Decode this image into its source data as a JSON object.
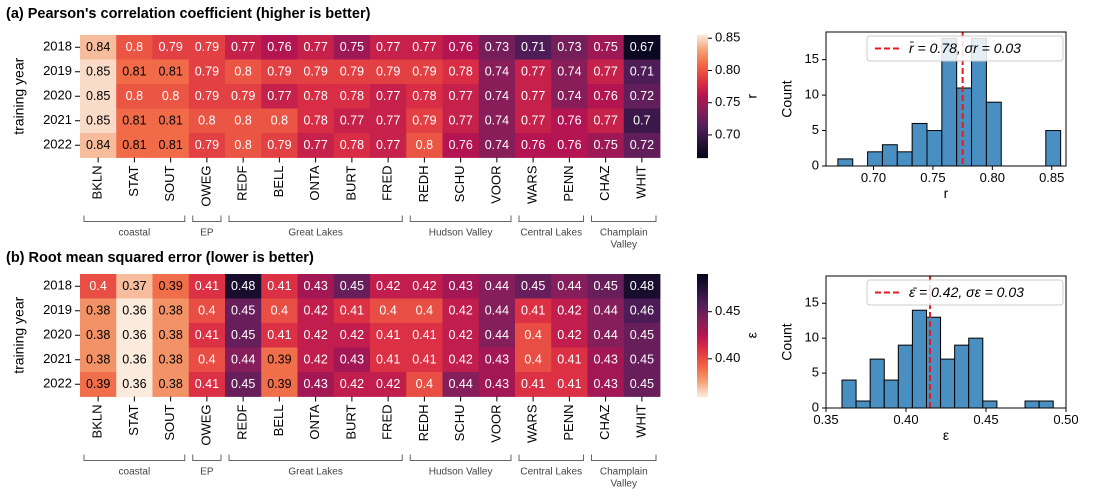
{
  "chart_data": [
    {
      "type": "heatmap",
      "title": "(a) Pearson's correlation coefficient (higher is better)",
      "ylabel": "training year",
      "colorbar_label": "r",
      "colorbar_ticks": [
        "0.70",
        "0.75",
        "0.80",
        "0.85"
      ],
      "colorbar_range": [
        0.665,
        0.855
      ],
      "colormap": "rocket",
      "rows": [
        "2018",
        "2019",
        "2020",
        "2021",
        "2022"
      ],
      "columns": [
        "BKLN",
        "STAT",
        "SOUT",
        "OWEG",
        "REDF",
        "BELL",
        "ONTA",
        "BURT",
        "FRED",
        "REDH",
        "SCHU",
        "VOOR",
        "WARS",
        "PENN",
        "CHAZ",
        "WHIT"
      ],
      "groups": [
        {
          "label": "coastal",
          "columns": 3
        },
        {
          "label": "EP",
          "columns": 1
        },
        {
          "label": "Great Lakes",
          "columns": 5
        },
        {
          "label": "Hudson Valley",
          "columns": 3
        },
        {
          "label": "Central Lakes",
          "columns": 2
        },
        {
          "label": "Champlain\nValley",
          "columns": 2
        }
      ],
      "values": [
        [
          "0.84",
          "0.8",
          "0.79",
          "0.79",
          "0.77",
          "0.76",
          "0.77",
          "0.75",
          "0.77",
          "0.77",
          "0.76",
          "0.73",
          "0.71",
          "0.73",
          "0.75",
          "0.67"
        ],
        [
          "0.85",
          "0.81",
          "0.81",
          "0.79",
          "0.8",
          "0.79",
          "0.79",
          "0.79",
          "0.79",
          "0.79",
          "0.78",
          "0.74",
          "0.77",
          "0.74",
          "0.77",
          "0.71"
        ],
        [
          "0.85",
          "0.8",
          "0.8",
          "0.79",
          "0.79",
          "0.77",
          "0.78",
          "0.78",
          "0.77",
          "0.78",
          "0.77",
          "0.74",
          "0.77",
          "0.74",
          "0.76",
          "0.72"
        ],
        [
          "0.85",
          "0.81",
          "0.81",
          "0.8",
          "0.8",
          "0.8",
          "0.78",
          "0.77",
          "0.77",
          "0.79",
          "0.77",
          "0.74",
          "0.77",
          "0.76",
          "0.77",
          "0.7"
        ],
        [
          "0.84",
          "0.81",
          "0.81",
          "0.79",
          "0.8",
          "0.79",
          "0.77",
          "0.78",
          "0.77",
          "0.8",
          "0.76",
          "0.74",
          "0.76",
          "0.76",
          "0.75",
          "0.72"
        ]
      ]
    },
    {
      "type": "histogram",
      "xlabel": "r",
      "ylabel": "Count",
      "xlim": [
        0.66,
        0.862
      ],
      "ylim": [
        0,
        18.9
      ],
      "xticks": [
        "0.70",
        "0.75",
        "0.80",
        "0.85"
      ],
      "yticks": [
        "0",
        "5",
        "10",
        "15"
      ],
      "bin_edges": [
        0.67,
        0.6825,
        0.695,
        0.7075,
        0.72,
        0.7325,
        0.745,
        0.7575,
        0.77,
        0.7825,
        0.795,
        0.8075,
        0.82,
        0.8325,
        0.845,
        0.8575
      ],
      "counts": [
        1,
        0,
        2,
        3,
        2,
        6,
        5,
        18,
        11,
        18,
        9,
        0,
        0,
        0,
        5
      ],
      "mean_line": 0.775,
      "legend": "r̄ = 0.78, σr = 0.03",
      "bar_color": "#4a8fc2"
    },
    {
      "type": "heatmap",
      "title": "(b) Root mean squared error (lower is better)",
      "ylabel": "training year",
      "colorbar_label": "ε",
      "colorbar_ticks": [
        "0.40",
        "0.45"
      ],
      "colorbar_range": [
        0.36,
        0.49
      ],
      "colormap": "rocket_r",
      "rows": [
        "2018",
        "2019",
        "2020",
        "2021",
        "2022"
      ],
      "columns": [
        "BKLN",
        "STAT",
        "SOUT",
        "OWEG",
        "REDF",
        "BELL",
        "ONTA",
        "BURT",
        "FRED",
        "REDH",
        "SCHU",
        "VOOR",
        "WARS",
        "PENN",
        "CHAZ",
        "WHIT"
      ],
      "groups": [
        {
          "label": "coastal",
          "columns": 3
        },
        {
          "label": "EP",
          "columns": 1
        },
        {
          "label": "Great Lakes",
          "columns": 5
        },
        {
          "label": "Hudson Valley",
          "columns": 3
        },
        {
          "label": "Central Lakes",
          "columns": 2
        },
        {
          "label": "Champlain\nValley",
          "columns": 2
        }
      ],
      "values": [
        [
          "0.4",
          "0.37",
          "0.39",
          "0.41",
          "0.48",
          "0.41",
          "0.43",
          "0.45",
          "0.42",
          "0.42",
          "0.43",
          "0.44",
          "0.45",
          "0.44",
          "0.45",
          "0.48"
        ],
        [
          "0.38",
          "0.36",
          "0.38",
          "0.4",
          "0.45",
          "0.4",
          "0.42",
          "0.41",
          "0.4",
          "0.4",
          "0.42",
          "0.44",
          "0.41",
          "0.42",
          "0.44",
          "0.46"
        ],
        [
          "0.38",
          "0.36",
          "0.38",
          "0.41",
          "0.45",
          "0.41",
          "0.42",
          "0.42",
          "0.41",
          "0.41",
          "0.42",
          "0.44",
          "0.4",
          "0.42",
          "0.44",
          "0.45"
        ],
        [
          "0.38",
          "0.36",
          "0.38",
          "0.4",
          "0.44",
          "0.39",
          "0.42",
          "0.43",
          "0.41",
          "0.41",
          "0.42",
          "0.43",
          "0.4",
          "0.41",
          "0.43",
          "0.45"
        ],
        [
          "0.39",
          "0.36",
          "0.38",
          "0.41",
          "0.45",
          "0.39",
          "0.43",
          "0.42",
          "0.42",
          "0.4",
          "0.44",
          "0.43",
          "0.41",
          "0.41",
          "0.43",
          "0.45"
        ]
      ]
    },
    {
      "type": "histogram",
      "xlabel": "ε",
      "ylabel": "Count",
      "xlim": [
        0.35,
        0.5
      ],
      "ylim": [
        0,
        18.9
      ],
      "xticks": [
        "0.35",
        "0.40",
        "0.45",
        "0.50"
      ],
      "yticks": [
        "0",
        "5",
        "10",
        "15"
      ],
      "bin_edges": [
        0.36,
        0.3688,
        0.3776,
        0.3864,
        0.3952,
        0.404,
        0.4128,
        0.4216,
        0.4304,
        0.4392,
        0.448,
        0.4568,
        0.4656,
        0.4744,
        0.4832,
        0.492
      ],
      "counts": [
        4,
        1,
        7,
        4,
        9,
        14,
        13,
        7,
        9,
        10,
        1,
        0,
        0,
        1,
        1
      ],
      "mean_line": 0.415,
      "legend": "ε̄ = 0.42, σε = 0.03",
      "bar_color": "#4a8fc2"
    }
  ]
}
